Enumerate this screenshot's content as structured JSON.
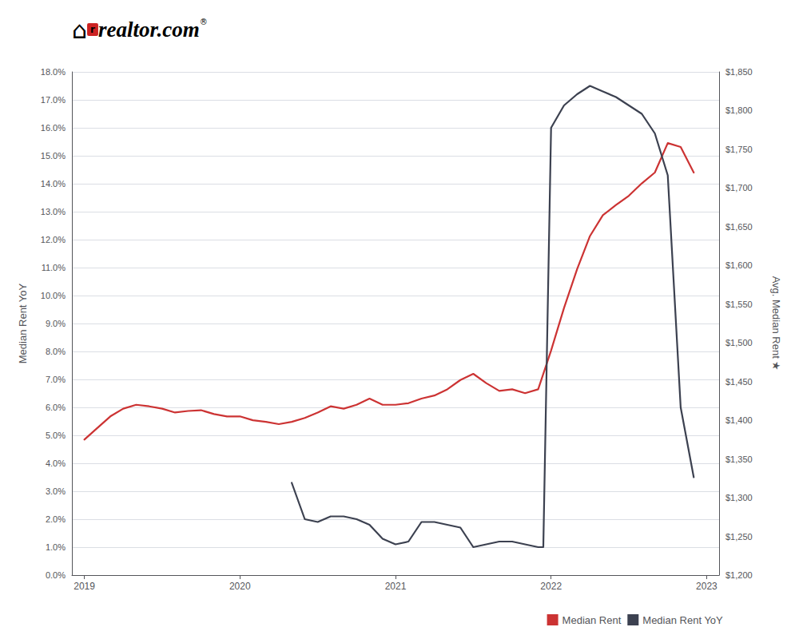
{
  "chart_data": {
    "type": "line",
    "ylabel": "Median Rent YoY",
    "y2label": "Avg. Median Rent ★",
    "xlim": [
      2018.92,
      2023.08
    ],
    "xticks": [
      2019,
      2020,
      2021,
      2022,
      2023
    ],
    "ylim": [
      0.0,
      0.18
    ],
    "yticks": [
      {
        "value": 0.0,
        "label": "0.0%"
      },
      {
        "value": 0.01,
        "label": "1.0%"
      },
      {
        "value": 0.02,
        "label": "2.0%"
      },
      {
        "value": 0.03,
        "label": "3.0%"
      },
      {
        "value": 0.04,
        "label": "4.0%"
      },
      {
        "value": 0.05,
        "label": "5.0%"
      },
      {
        "value": 0.06,
        "label": "6.0%"
      },
      {
        "value": 0.07,
        "label": "7.0%"
      },
      {
        "value": 0.08,
        "label": "8.0%"
      },
      {
        "value": 0.09,
        "label": "9.0%"
      },
      {
        "value": 0.1,
        "label": "10.0%"
      },
      {
        "value": 0.11,
        "label": "11.0%"
      },
      {
        "value": 0.12,
        "label": "12.0%"
      },
      {
        "value": 0.13,
        "label": "13.0%"
      },
      {
        "value": 0.14,
        "label": "14.0%"
      },
      {
        "value": 0.15,
        "label": "15.0%"
      },
      {
        "value": 0.16,
        "label": "16.0%"
      },
      {
        "value": 0.17,
        "label": "17.0%"
      },
      {
        "value": 0.18,
        "label": "18.0%"
      }
    ],
    "y2lim": [
      1200,
      1850
    ],
    "y2ticks": [
      {
        "value": 1200,
        "label": "$1,200"
      },
      {
        "value": 1250,
        "label": "$1,250"
      },
      {
        "value": 1300,
        "label": "$1,300"
      },
      {
        "value": 1350,
        "label": "$1,350"
      },
      {
        "value": 1400,
        "label": "$1,400"
      },
      {
        "value": 1450,
        "label": "$1,450"
      },
      {
        "value": 1500,
        "label": "$1,500"
      },
      {
        "value": 1550,
        "label": "$1,550"
      },
      {
        "value": 1600,
        "label": "$1,600"
      },
      {
        "value": 1650,
        "label": "$1,650"
      },
      {
        "value": 1700,
        "label": "$1,700"
      },
      {
        "value": 1750,
        "label": "$1,750"
      },
      {
        "value": 1800,
        "label": "$1,800"
      },
      {
        "value": 1850,
        "label": "$1,850"
      }
    ],
    "grid": true,
    "legend": "lower right",
    "series": [
      {
        "name": "Median Rent",
        "color": "#cc3333",
        "axis": "y2",
        "x": [
          2019.0,
          2019.083,
          2019.167,
          2019.25,
          2019.333,
          2019.417,
          2019.5,
          2019.583,
          2019.667,
          2019.75,
          2019.833,
          2019.917,
          2020.0,
          2020.083,
          2020.167,
          2020.25,
          2020.333,
          2020.417,
          2020.5,
          2020.583,
          2020.667,
          2020.75,
          2020.833,
          2020.917,
          2021.0,
          2021.083,
          2021.167,
          2021.25,
          2021.333,
          2021.417,
          2021.5,
          2021.583,
          2021.667,
          2021.75,
          2021.833,
          2021.917,
          2022.0,
          2022.083,
          2022.167,
          2022.25,
          2022.333,
          2022.417,
          2022.5,
          2022.583,
          2022.667,
          2022.75,
          2022.833,
          2022.917
        ],
        "values": [
          1375,
          1390,
          1405,
          1415,
          1420,
          1418,
          1415,
          1410,
          1412,
          1413,
          1408,
          1405,
          1405,
          1400,
          1398,
          1395,
          1398,
          1403,
          1410,
          1418,
          1415,
          1420,
          1428,
          1420,
          1420,
          1422,
          1428,
          1432,
          1440,
          1452,
          1460,
          1448,
          1438,
          1440,
          1435,
          1440,
          1490,
          1545,
          1595,
          1638,
          1665,
          1678,
          1690,
          1706,
          1720,
          1758,
          1753,
          1720
        ]
      },
      {
        "name": "Median Rent YoY",
        "color": "#3c4150",
        "x": [
          2020.333,
          2020.417,
          2020.5,
          2020.583,
          2020.667,
          2020.75,
          2020.833,
          2020.917,
          2021.0,
          2021.083,
          2021.167,
          2021.25,
          2021.333,
          2021.417,
          2021.5,
          2021.583,
          2021.667,
          2021.75,
          2021.833,
          2021.917,
          2021.95,
          2022.0,
          2022.083,
          2022.167,
          2022.25,
          2022.333,
          2022.417,
          2022.5,
          2022.583,
          2022.667,
          2022.75,
          2022.833,
          2022.917
        ],
        "values": [
          0.033,
          0.02,
          0.019,
          0.021,
          0.021,
          0.02,
          0.018,
          0.013,
          0.011,
          0.012,
          0.019,
          0.019,
          0.018,
          0.017,
          0.01,
          0.011,
          0.012,
          0.012,
          0.011,
          0.01,
          0.01,
          0.16,
          0.168,
          0.172,
          0.175,
          0.173,
          0.171,
          0.168,
          0.165,
          0.158,
          0.143,
          0.06,
          0.035
        ]
      }
    ],
    "annotations": [
      {
        "text": "⌂",
        "color": "#cc2222"
      },
      {
        "text": "r",
        "color": "#ffffff"
      },
      {
        "text": "real",
        "color": "#cc2222"
      },
      {
        "text": "tor.com",
        "color": "#111111"
      },
      {
        "text": "®",
        "color": "#111111"
      }
    ]
  }
}
